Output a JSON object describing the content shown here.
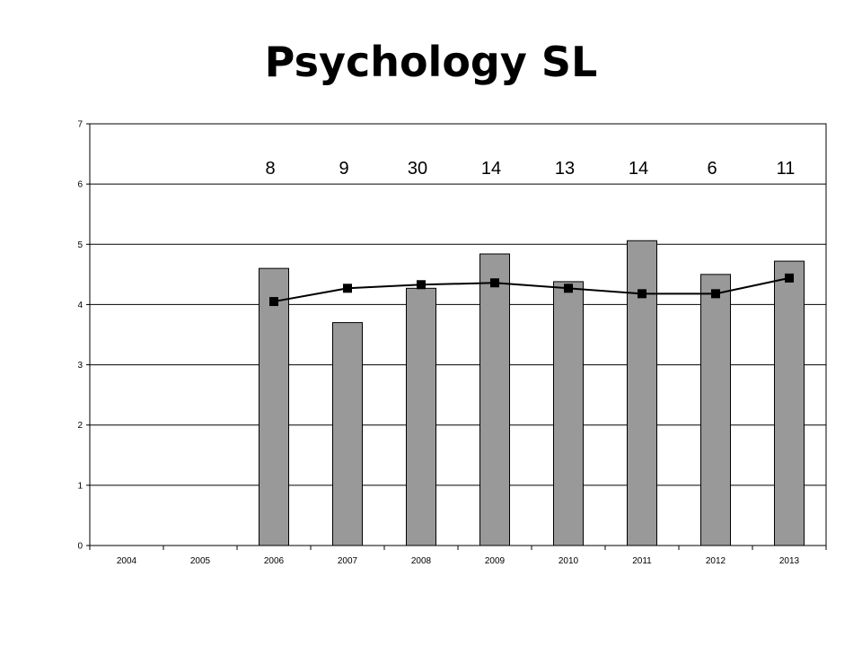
{
  "chart_data": {
    "type": "bar",
    "title": "Psychology SL",
    "xlabel": "",
    "ylabel": "",
    "ylim": [
      0,
      7
    ],
    "yticks": [
      0,
      1,
      2,
      3,
      4,
      5,
      6,
      7
    ],
    "categories": [
      "2004",
      "2005",
      "2006",
      "2007",
      "2008",
      "2009",
      "2010",
      "2011",
      "2012",
      "2013"
    ],
    "series": [
      {
        "type": "bar",
        "values": [
          null,
          null,
          4.6,
          3.7,
          4.27,
          4.84,
          4.38,
          5.06,
          4.5,
          4.72
        ]
      },
      {
        "type": "line",
        "values": [
          null,
          null,
          4.05,
          4.27,
          4.33,
          4.36,
          4.27,
          4.18,
          4.18,
          4.44
        ]
      }
    ],
    "top_labels": [
      "",
      "",
      "8",
      "9",
      "30",
      "14",
      "13",
      "14",
      "6",
      "11"
    ],
    "grid": true,
    "colors": {
      "bar": "#999999",
      "line": "#000000",
      "marker": "#000000"
    }
  }
}
